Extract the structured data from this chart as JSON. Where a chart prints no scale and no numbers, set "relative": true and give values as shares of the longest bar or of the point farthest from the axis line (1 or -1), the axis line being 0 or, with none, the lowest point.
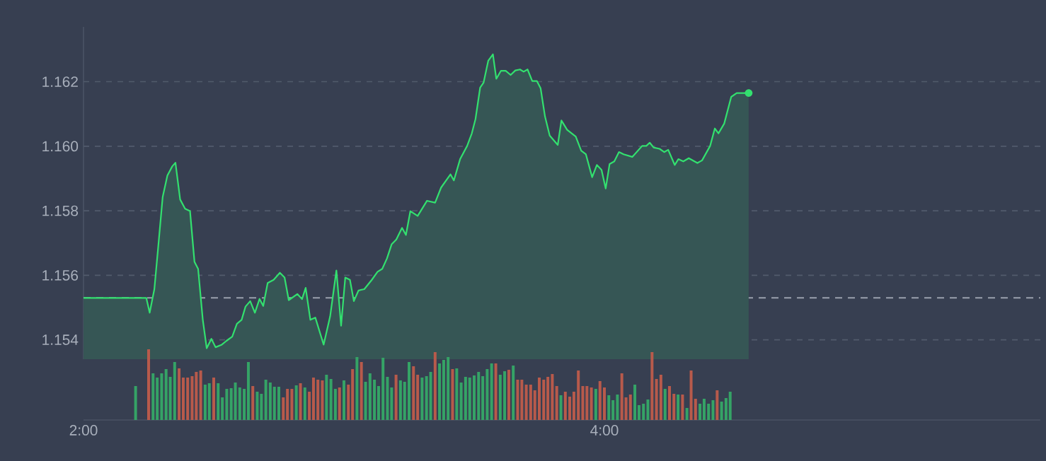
{
  "chart_data": [
    {
      "type": "area",
      "color": "#33e06f",
      "xlim": [
        2,
        5.674
      ],
      "ylim": [
        1.1534,
        1.1637
      ],
      "yticks": [
        {
          "value": 1.154,
          "label": "1.154"
        },
        {
          "value": 1.156,
          "label": "1.156"
        },
        {
          "value": 1.158,
          "label": "1.158"
        },
        {
          "value": 1.16,
          "label": "1.160"
        },
        {
          "value": 1.162,
          "label": "1.162"
        }
      ],
      "grid": "y",
      "tick_labels": "y",
      "ref_lines": [
        {
          "axis": "y",
          "value": 1.1553,
          "color": "#9aa1ad",
          "line_style": "dashed"
        }
      ],
      "x": [
        2.0,
        2.241,
        2.254,
        2.272,
        2.286,
        2.304,
        2.322,
        2.341,
        2.353,
        2.371,
        2.39,
        2.409,
        2.426,
        2.44,
        2.458,
        2.473,
        2.491,
        2.507,
        2.531,
        2.549,
        2.571,
        2.589,
        2.607,
        2.622,
        2.64,
        2.658,
        2.676,
        2.69,
        2.707,
        2.73,
        2.754,
        2.772,
        2.788,
        2.821,
        2.839,
        2.853,
        2.871,
        2.89,
        2.922,
        2.947,
        2.971,
        2.989,
        3.005,
        3.023,
        3.038,
        3.056,
        3.078,
        3.107,
        3.129,
        3.147,
        3.165,
        3.183,
        3.201,
        3.223,
        3.238,
        3.255,
        3.283,
        3.319,
        3.35,
        3.373,
        3.409,
        3.422,
        3.446,
        3.473,
        3.491,
        3.505,
        3.523,
        3.536,
        3.554,
        3.572,
        3.585,
        3.603,
        3.621,
        3.64,
        3.658,
        3.676,
        3.69,
        3.705,
        3.723,
        3.741,
        3.755,
        3.772,
        3.79,
        3.821,
        3.835,
        3.857,
        3.89,
        3.911,
        3.929,
        3.953,
        3.971,
        3.989,
        4.005,
        4.02,
        4.038,
        4.056,
        4.074,
        4.107,
        4.145,
        4.161,
        4.174,
        4.189,
        4.212,
        4.23,
        4.245,
        4.27,
        4.284,
        4.303,
        4.324,
        4.357,
        4.375,
        4.406,
        4.424,
        4.438,
        4.46,
        4.487,
        4.508,
        4.554
      ],
      "values": [
        1.1553,
        1.1553,
        1.15484,
        1.15557,
        1.15681,
        1.15843,
        1.15909,
        1.15938,
        1.15949,
        1.15835,
        1.15806,
        1.15799,
        1.15642,
        1.1562,
        1.15462,
        1.15374,
        1.15403,
        1.15377,
        1.15385,
        1.15397,
        1.1541,
        1.1545,
        1.15462,
        1.15503,
        1.1552,
        1.15484,
        1.15527,
        1.15505,
        1.15576,
        1.15586,
        1.15608,
        1.15593,
        1.15523,
        1.15542,
        1.15526,
        1.15561,
        1.15462,
        1.15469,
        1.15385,
        1.15473,
        1.15615,
        1.15444,
        1.15593,
        1.15586,
        1.1552,
        1.15553,
        1.15557,
        1.15586,
        1.15611,
        1.1562,
        1.15652,
        1.15696,
        1.15711,
        1.15747,
        1.15725,
        1.15799,
        1.15784,
        1.15831,
        1.15825,
        1.15872,
        1.15913,
        1.15894,
        1.1596,
        1.16001,
        1.1604,
        1.16084,
        1.16182,
        1.16197,
        1.16265,
        1.16285,
        1.16209,
        1.16234,
        1.16234,
        1.16221,
        1.16235,
        1.16238,
        1.16231,
        1.16238,
        1.16202,
        1.16202,
        1.1618,
        1.16092,
        1.16033,
        1.16004,
        1.1608,
        1.16051,
        1.1603,
        1.15986,
        1.15975,
        1.15904,
        1.15942,
        1.15927,
        1.15869,
        1.15945,
        1.15953,
        1.15982,
        1.15975,
        1.15967,
        1.16001,
        1.16001,
        1.16011,
        1.15996,
        1.15992,
        1.15982,
        1.15989,
        1.15942,
        1.1596,
        1.15953,
        1.15963,
        1.15948,
        1.15956,
        1.16001,
        1.16055,
        1.1604,
        1.1607,
        1.16153,
        1.16165,
        1.16165
      ]
    },
    {
      "type": "bar",
      "relative": true,
      "xlim": [
        2,
        5.674
      ],
      "tick_labels": "x",
      "xticks": [
        {
          "value": 2,
          "label": "2:00"
        },
        {
          "value": 4,
          "label": "4:00"
        }
      ],
      "x": [
        2.2,
        2.25,
        2.267,
        2.283,
        2.3,
        2.317,
        2.333,
        2.35,
        2.367,
        2.383,
        2.4,
        2.417,
        2.433,
        2.45,
        2.467,
        2.483,
        2.5,
        2.517,
        2.533,
        2.55,
        2.567,
        2.583,
        2.6,
        2.617,
        2.633,
        2.65,
        2.667,
        2.683,
        2.7,
        2.717,
        2.733,
        2.75,
        2.767,
        2.783,
        2.8,
        2.817,
        2.833,
        2.85,
        2.867,
        2.883,
        2.9,
        2.917,
        2.933,
        2.95,
        2.967,
        2.983,
        3,
        3.017,
        3.033,
        3.05,
        3.067,
        3.083,
        3.1,
        3.117,
        3.133,
        3.15,
        3.167,
        3.183,
        3.2,
        3.217,
        3.233,
        3.25,
        3.267,
        3.283,
        3.3,
        3.317,
        3.333,
        3.35,
        3.367,
        3.383,
        3.4,
        3.417,
        3.433,
        3.45,
        3.467,
        3.483,
        3.5,
        3.517,
        3.533,
        3.55,
        3.567,
        3.583,
        3.6,
        3.617,
        3.633,
        3.65,
        3.667,
        3.683,
        3.7,
        3.717,
        3.733,
        3.75,
        3.767,
        3.783,
        3.8,
        3.817,
        3.833,
        3.85,
        3.867,
        3.883,
        3.9,
        3.917,
        3.933,
        3.95,
        3.967,
        3.983,
        4,
        4.017,
        4.033,
        4.05,
        4.067,
        4.083,
        4.1,
        4.117,
        4.133,
        4.15,
        4.167,
        4.183,
        4.2,
        4.217,
        4.233,
        4.25,
        4.267,
        4.283,
        4.3,
        4.317,
        4.333,
        4.35,
        4.367,
        4.383,
        4.4,
        4.417,
        4.433,
        4.45,
        4.467,
        4.483
      ],
      "values": [
        0.48,
        1,
        0.66,
        0.6,
        0.66,
        0.72,
        0.61,
        0.82,
        0.73,
        0.6,
        0.6,
        0.62,
        0.68,
        0.7,
        0.5,
        0.52,
        0.6,
        0.52,
        0.32,
        0.44,
        0.45,
        0.53,
        0.46,
        0.44,
        0.82,
        0.48,
        0.4,
        0.37,
        0.57,
        0.53,
        0.47,
        0.47,
        0.32,
        0.44,
        0.44,
        0.49,
        0.52,
        0.46,
        0.4,
        0.6,
        0.57,
        0.56,
        0.64,
        0.58,
        0.44,
        0.46,
        0.56,
        0.5,
        0.72,
        0.89,
        0.82,
        0.54,
        0.66,
        0.57,
        0.48,
        0.88,
        0.61,
        0.46,
        0.64,
        0.56,
        0.54,
        0.82,
        0.76,
        0.64,
        0.6,
        0.62,
        0.68,
        0.96,
        0.8,
        0.85,
        0.89,
        0.72,
        0.73,
        0.53,
        0.61,
        0.6,
        0.63,
        0.68,
        0.62,
        0.72,
        0.8,
        0.8,
        0.64,
        0.69,
        0.71,
        0.77,
        0.57,
        0.57,
        0.5,
        0.5,
        0.42,
        0.6,
        0.57,
        0.61,
        0.65,
        0.48,
        0.35,
        0.4,
        0.33,
        0.4,
        0.7,
        0.48,
        0.48,
        0.46,
        0.44,
        0.55,
        0.46,
        0.35,
        0.28,
        0.36,
        0.66,
        0.32,
        0.36,
        0.5,
        0.21,
        0.23,
        0.29,
        0.96,
        0.58,
        0.64,
        0.44,
        0.48,
        0.37,
        0.36,
        0.36,
        0.17,
        0.7,
        0.3,
        0.23,
        0.3,
        0.23,
        0.28,
        0.42,
        0.26,
        0.31,
        0.4
      ],
      "colors": [
        "#35a366",
        "#b85a4b",
        "#35a366",
        "#35a366",
        "#35a366",
        "#35a366",
        "#35a366",
        "#35a366",
        "#b85a4b",
        "#b85a4b",
        "#b85a4b",
        "#b85a4b",
        "#b85a4b",
        "#b85a4b",
        "#35a366",
        "#35a366",
        "#b85a4b",
        "#35a366",
        "#35a366",
        "#35a366",
        "#35a366",
        "#35a366",
        "#35a366",
        "#35a366",
        "#35a366",
        "#b85a4b",
        "#35a366",
        "#35a366",
        "#35a366",
        "#35a366",
        "#35a366",
        "#35a366",
        "#b85a4b",
        "#b85a4b",
        "#b85a4b",
        "#35a366",
        "#b85a4b",
        "#35a366",
        "#b85a4b",
        "#b85a4b",
        "#b85a4b",
        "#b85a4b",
        "#35a366",
        "#35a366",
        "#35a366",
        "#b85a4b",
        "#35a366",
        "#b85a4b",
        "#b85a4b",
        "#35a366",
        "#b85a4b",
        "#35a366",
        "#35a366",
        "#35a366",
        "#35a366",
        "#35a366",
        "#35a366",
        "#35a366",
        "#b85a4b",
        "#35a366",
        "#35a366",
        "#35a366",
        "#b85a4b",
        "#b85a4b",
        "#35a366",
        "#35a366",
        "#35a366",
        "#b85a4b",
        "#35a366",
        "#35a366",
        "#35a366",
        "#b85a4b",
        "#35a366",
        "#35a366",
        "#35a366",
        "#35a366",
        "#35a366",
        "#35a366",
        "#35a366",
        "#35a366",
        "#35a366",
        "#b85a4b",
        "#35a366",
        "#35a366",
        "#b85a4b",
        "#35a366",
        "#b85a4b",
        "#b85a4b",
        "#b85a4b",
        "#b85a4b",
        "#b85a4b",
        "#b85a4b",
        "#b85a4b",
        "#b85a4b",
        "#b85a4b",
        "#b85a4b",
        "#35a366",
        "#b85a4b",
        "#b85a4b",
        "#b85a4b",
        "#b85a4b",
        "#b85a4b",
        "#b85a4b",
        "#b85a4b",
        "#35a366",
        "#b85a4b",
        "#b85a4b",
        "#35a366",
        "#35a366",
        "#35a366",
        "#b85a4b",
        "#b85a4b",
        "#b85a4b",
        "#35a366",
        "#35a366",
        "#35a366",
        "#35a366",
        "#b85a4b",
        "#b85a4b",
        "#b85a4b",
        "#35a366",
        "#b85a4b",
        "#b85a4b",
        "#35a366",
        "#b85a4b",
        "#35a366",
        "#b85a4b",
        "#b85a4b",
        "#35a366",
        "#35a366",
        "#35a366",
        "#35a366",
        "#b85a4b",
        "#35a366",
        "#35a366",
        "#35a366"
      ]
    }
  ]
}
